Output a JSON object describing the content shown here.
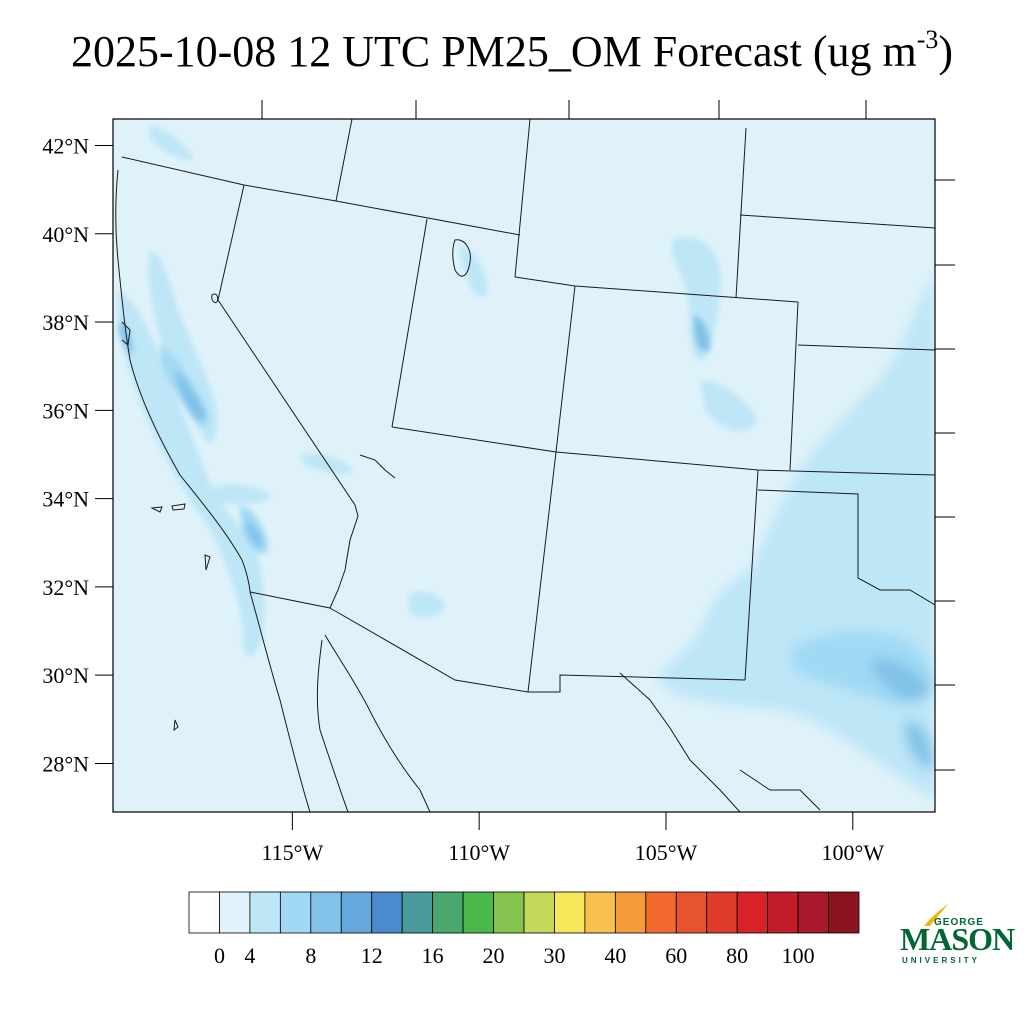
{
  "title": {
    "text": "2025-10-08 12 UTC PM25_OM Forecast (ug m",
    "unit_exponent": "-3",
    "close": ")"
  },
  "map": {
    "background_color": "#dff2fa",
    "lon_range": [
      -119.8,
      -97.8
    ],
    "lat_range": [
      26.9,
      42.6
    ],
    "lat_ticks": [
      {
        "value": 42,
        "label": "42°N"
      },
      {
        "value": 40,
        "label": "40°N"
      },
      {
        "value": 38,
        "label": "38°N"
      },
      {
        "value": 36,
        "label": "36°N"
      },
      {
        "value": 34,
        "label": "34°N"
      },
      {
        "value": 32,
        "label": "32°N"
      },
      {
        "value": 30,
        "label": "30°N"
      },
      {
        "value": 28,
        "label": "28°N"
      }
    ],
    "lon_ticks": [
      {
        "value": -115,
        "label": "115°W"
      },
      {
        "value": -110,
        "label": "110°W"
      },
      {
        "value": -105,
        "label": "105°W"
      },
      {
        "value": -100,
        "label": "100°W"
      }
    ]
  },
  "colorbar": {
    "colors": [
      "#ffffff",
      "#dff2fa",
      "#bde6f7",
      "#9fd9f4",
      "#82c2e8",
      "#67a8dc",
      "#4a8bce",
      "#4a9c9c",
      "#4aa76e",
      "#4cb74a",
      "#84c44e",
      "#c4d85a",
      "#f7e65a",
      "#f8c04c",
      "#f69b3c",
      "#f2692e",
      "#e6532e",
      "#de3b2a",
      "#d7222a",
      "#c21c2a",
      "#a8182a",
      "#8c1420"
    ],
    "labels": [
      {
        "text": "0",
        "index": 1
      },
      {
        "text": "4",
        "index": 2
      },
      {
        "text": "8",
        "index": 4
      },
      {
        "text": "12",
        "index": 6
      },
      {
        "text": "16",
        "index": 8
      },
      {
        "text": "20",
        "index": 10
      },
      {
        "text": "30",
        "index": 12
      },
      {
        "text": "40",
        "index": 14
      },
      {
        "text": "60",
        "index": 16
      },
      {
        "text": "80",
        "index": 18
      },
      {
        "text": "100",
        "index": 20
      }
    ]
  },
  "logo": {
    "george": "GEORGE",
    "mason": "MASON",
    "university": "UNIVERSITY",
    "color": "#006633",
    "accent_color": "#f2b705"
  }
}
